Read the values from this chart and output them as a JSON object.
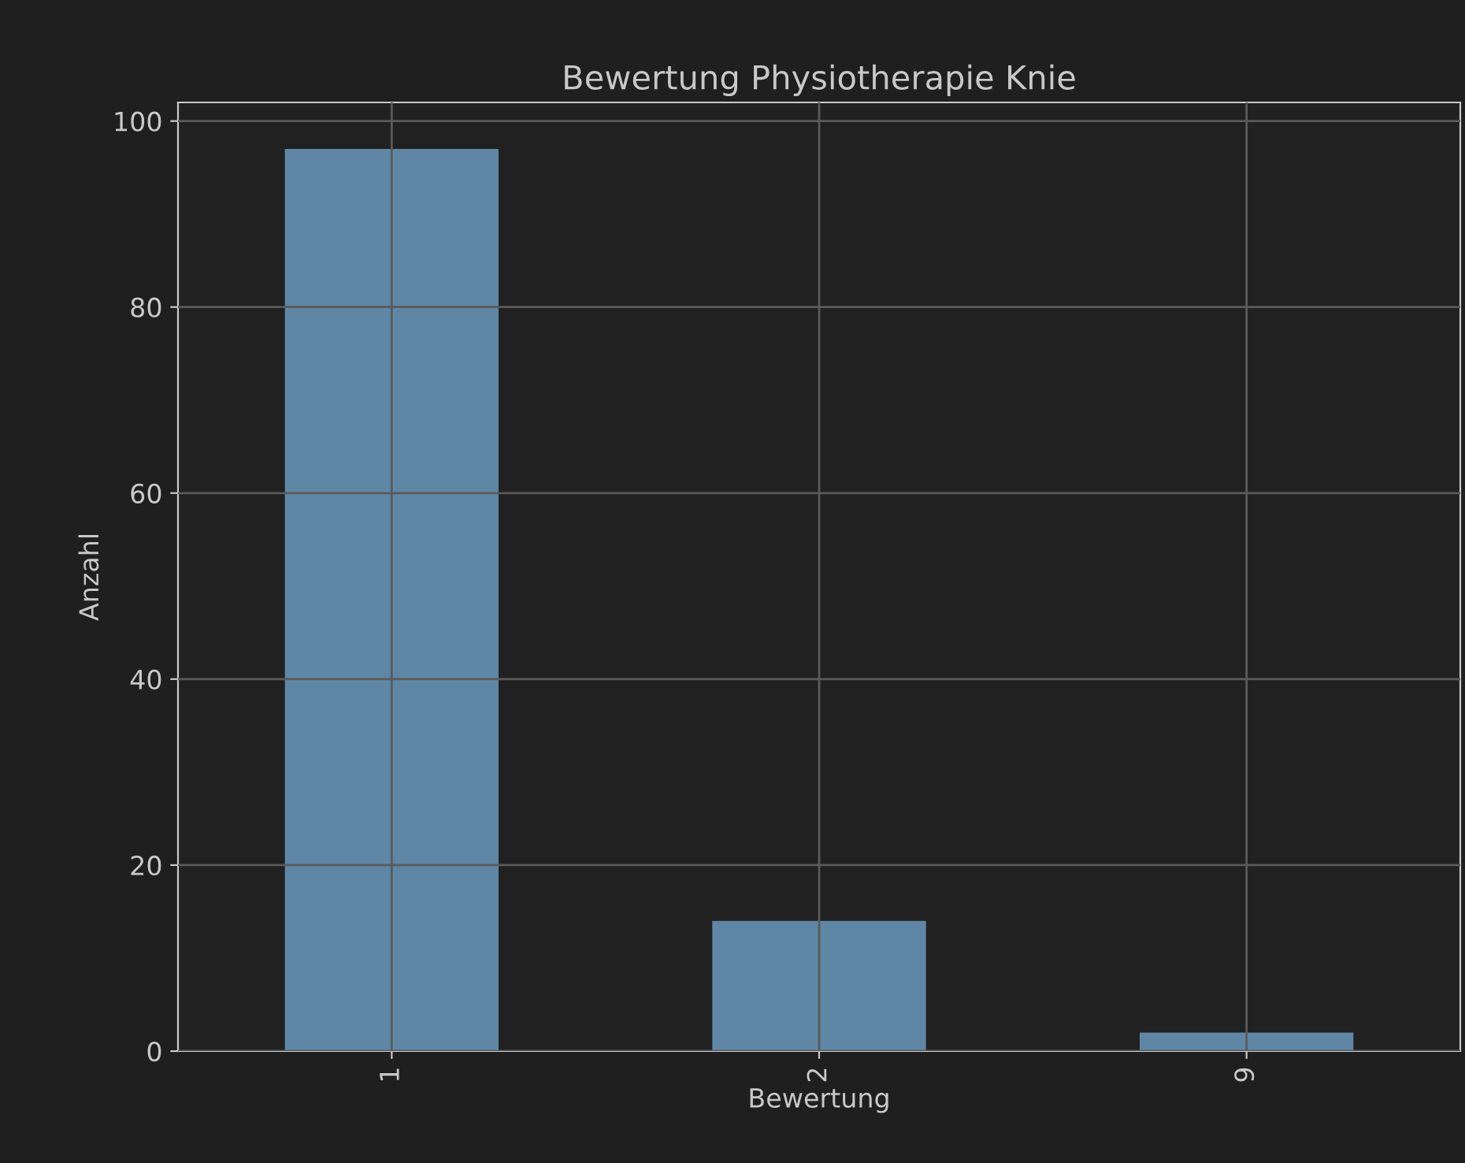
{
  "chart_data": {
    "type": "bar",
    "title": "Bewertung Physiotherapie Knie",
    "xlabel": "Bewertung",
    "ylabel": "Anzahl",
    "categories": [
      "1",
      "2",
      "9"
    ],
    "values": [
      97,
      14,
      2
    ],
    "color": "#5f87a5",
    "ylim": [
      0,
      102
    ],
    "yticks": [
      0,
      20,
      40,
      60,
      80,
      100
    ],
    "grid": true,
    "legend": false
  }
}
